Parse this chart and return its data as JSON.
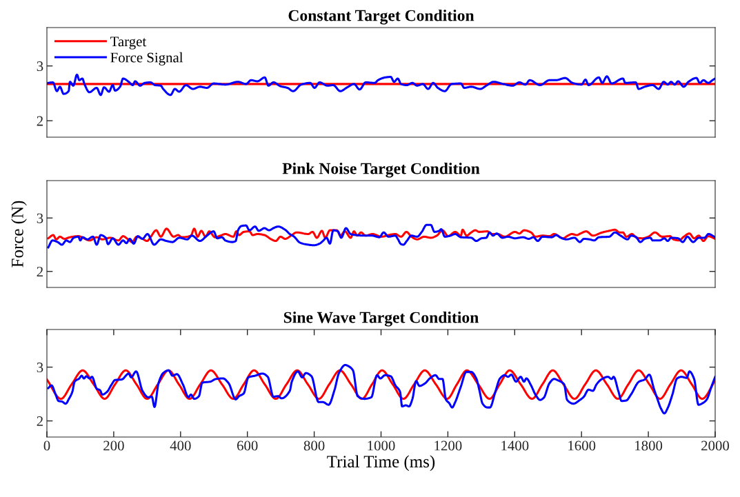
{
  "chart_data": [
    {
      "type": "line",
      "title": "Constant Target Condition",
      "xlim": [
        0,
        2000
      ],
      "ylim": [
        1.7,
        3.7
      ],
      "yticks": [
        2,
        3
      ],
      "tick_labels": "y",
      "legend": "top left",
      "grid": false,
      "series": [
        {
          "name": "Target",
          "color": "#ff0000",
          "x": [
            0,
            2000
          ],
          "values": [
            2.67,
            2.67
          ]
        },
        {
          "name": "Force Signal",
          "color": "#0000ff",
          "x": [
            4,
            18,
            30,
            39,
            50,
            65,
            69,
            79,
            90,
            97,
            106,
            113,
            127,
            149,
            161,
            171,
            186,
            197,
            204,
            219,
            228,
            245,
            257,
            264,
            279,
            293,
            310,
            324,
            341,
            348,
            370,
            383,
            396,
            416,
            437,
            458,
            479,
            499,
            534,
            572,
            596,
            611,
            630,
            652,
            663,
            678,
            699,
            720,
            737,
            761,
            788,
            801,
            816,
            840,
            857,
            878,
            899,
            919,
            936,
            954,
            981,
            991,
            1012,
            1029,
            1039,
            1050,
            1060,
            1077,
            1094,
            1108,
            1125,
            1141,
            1156,
            1170,
            1191,
            1211,
            1239,
            1249,
            1270,
            1297,
            1315,
            1337,
            1366,
            1394,
            1414,
            1432,
            1445,
            1476,
            1504,
            1524,
            1551,
            1573,
            1600,
            1612,
            1621,
            1652,
            1662,
            1676,
            1690,
            1724,
            1731,
            1762,
            1771,
            1789,
            1813,
            1831,
            1846,
            1858,
            1868,
            1879,
            1889,
            1906,
            1920,
            1944,
            1954,
            1965,
            1979,
            1992,
            2000
          ],
          "values": [
            2.69,
            2.7,
            2.54,
            2.62,
            2.49,
            2.54,
            2.71,
            2.64,
            2.84,
            2.74,
            2.77,
            2.66,
            2.52,
            2.6,
            2.47,
            2.61,
            2.53,
            2.65,
            2.55,
            2.62,
            2.77,
            2.71,
            2.65,
            2.72,
            2.64,
            2.69,
            2.7,
            2.65,
            2.64,
            2.58,
            2.47,
            2.58,
            2.53,
            2.65,
            2.58,
            2.62,
            2.6,
            2.68,
            2.66,
            2.71,
            2.67,
            2.74,
            2.72,
            2.79,
            2.64,
            2.7,
            2.63,
            2.6,
            2.54,
            2.66,
            2.69,
            2.6,
            2.7,
            2.64,
            2.65,
            2.54,
            2.61,
            2.67,
            2.57,
            2.7,
            2.69,
            2.74,
            2.79,
            2.8,
            2.71,
            2.77,
            2.67,
            2.65,
            2.69,
            2.64,
            2.67,
            2.58,
            2.69,
            2.6,
            2.54,
            2.67,
            2.68,
            2.6,
            2.62,
            2.58,
            2.64,
            2.71,
            2.67,
            2.64,
            2.7,
            2.66,
            2.74,
            2.65,
            2.74,
            2.74,
            2.78,
            2.69,
            2.66,
            2.75,
            2.65,
            2.79,
            2.69,
            2.81,
            2.68,
            2.77,
            2.69,
            2.7,
            2.58,
            2.62,
            2.65,
            2.58,
            2.71,
            2.66,
            2.71,
            2.66,
            2.72,
            2.62,
            2.71,
            2.78,
            2.69,
            2.74,
            2.69,
            2.74,
            2.77
          ]
        }
      ]
    },
    {
      "type": "line",
      "title": "Pink Noise Target Condition",
      "ylabel": "Force (N)",
      "xlim": [
        0,
        2000
      ],
      "ylim": [
        1.7,
        3.7
      ],
      "yticks": [
        2,
        3
      ],
      "tick_labels": "y",
      "grid": false,
      "series": [
        {
          "color": "#ff0000",
          "x": [
            4,
            19,
            28,
            39,
            52,
            69,
            94,
            128,
            149,
            166,
            190,
            214,
            228,
            241,
            255,
            269,
            286,
            300,
            310,
            327,
            341,
            358,
            379,
            393,
            403,
            431,
            441,
            451,
            462,
            475,
            486,
            503,
            520,
            534,
            558,
            567,
            575,
            589,
            606,
            616,
            630,
            651,
            672,
            685,
            699,
            713,
            733,
            747,
            782,
            795,
            808,
            823,
            833,
            847,
            868,
            878,
            892,
            909,
            919,
            929,
            940,
            954,
            974,
            1002,
            1022,
            1043,
            1060,
            1076,
            1091,
            1108,
            1129,
            1149,
            1167,
            1184,
            1201,
            1222,
            1239,
            1244,
            1256,
            1270,
            1282,
            1294,
            1318,
            1332,
            1349,
            1370,
            1401,
            1414,
            1428,
            1449,
            1462,
            1483,
            1504,
            1518,
            1545,
            1559,
            1571,
            1586,
            1597,
            1614,
            1634,
            1662,
            1683,
            1700,
            1714,
            1724,
            1734,
            1751,
            1765,
            1782,
            1800,
            1820,
            1841,
            1865,
            1875,
            1892,
            1906,
            1923,
            1937,
            1951,
            1965,
            1979,
            2000
          ],
          "values": [
            2.62,
            2.68,
            2.6,
            2.65,
            2.61,
            2.64,
            2.66,
            2.58,
            2.64,
            2.6,
            2.63,
            2.58,
            2.66,
            2.61,
            2.55,
            2.65,
            2.61,
            2.57,
            2.64,
            2.77,
            2.65,
            2.8,
            2.65,
            2.68,
            2.64,
            2.67,
            2.8,
            2.65,
            2.76,
            2.65,
            2.75,
            2.64,
            2.67,
            2.7,
            2.65,
            2.75,
            2.68,
            2.74,
            2.75,
            2.68,
            2.7,
            2.68,
            2.6,
            2.57,
            2.65,
            2.61,
            2.68,
            2.73,
            2.7,
            2.74,
            2.63,
            2.76,
            2.63,
            2.77,
            2.77,
            2.67,
            2.75,
            2.63,
            2.75,
            2.67,
            2.73,
            2.67,
            2.7,
            2.65,
            2.68,
            2.7,
            2.65,
            2.74,
            2.65,
            2.6,
            2.65,
            2.63,
            2.67,
            2.77,
            2.66,
            2.74,
            2.67,
            2.78,
            2.67,
            2.73,
            2.77,
            2.74,
            2.75,
            2.7,
            2.7,
            2.65,
            2.74,
            2.71,
            2.77,
            2.73,
            2.65,
            2.67,
            2.66,
            2.7,
            2.62,
            2.67,
            2.7,
            2.68,
            2.71,
            2.75,
            2.67,
            2.73,
            2.76,
            2.78,
            2.73,
            2.73,
            2.65,
            2.7,
            2.63,
            2.62,
            2.65,
            2.73,
            2.65,
            2.66,
            2.6,
            2.58,
            2.65,
            2.71,
            2.62,
            2.67,
            2.57,
            2.66,
            2.61
          ]
        },
        {
          "color": "#0000ff",
          "x": [
            4,
            17,
            32,
            45,
            58,
            69,
            80,
            94,
            100,
            107,
            121,
            138,
            149,
            161,
            176,
            183,
            197,
            214,
            228,
            238,
            248,
            260,
            272,
            286,
            301,
            321,
            341,
            358,
            376,
            396,
            420,
            434,
            458,
            479,
            499,
            510,
            524,
            534,
            555,
            565,
            572,
            582,
            596,
            606,
            623,
            634,
            651,
            665,
            678,
            692,
            713,
            727,
            740,
            757,
            782,
            799,
            816,
            826,
            837,
            847,
            857,
            871,
            881,
            895,
            909,
            926,
            947,
            974,
            995,
            1008,
            1022,
            1043,
            1050,
            1060,
            1067,
            1077,
            1091,
            1108,
            1122,
            1136,
            1149,
            1160,
            1174,
            1180,
            1191,
            1208,
            1222,
            1239,
            1270,
            1285,
            1301,
            1315,
            1325,
            1335,
            1346,
            1363,
            1380,
            1401,
            1425,
            1442,
            1456,
            1469,
            1483,
            1511,
            1524,
            1538,
            1555,
            1579,
            1595,
            1607,
            1624,
            1638,
            1652,
            1683,
            1700,
            1717,
            1738,
            1748,
            1762,
            1776,
            1789,
            1806,
            1813,
            1834,
            1848,
            1858,
            1868,
            1889,
            1903,
            1917,
            1934,
            1951,
            1968,
            1980,
            2000
          ],
          "values": [
            2.45,
            2.58,
            2.55,
            2.5,
            2.58,
            2.55,
            2.63,
            2.65,
            2.58,
            2.64,
            2.6,
            2.65,
            2.5,
            2.68,
            2.63,
            2.51,
            2.62,
            2.5,
            2.58,
            2.53,
            2.61,
            2.52,
            2.66,
            2.61,
            2.7,
            2.5,
            2.6,
            2.57,
            2.55,
            2.63,
            2.6,
            2.67,
            2.57,
            2.67,
            2.75,
            2.62,
            2.64,
            2.58,
            2.55,
            2.57,
            2.77,
            2.85,
            2.86,
            2.77,
            2.84,
            2.76,
            2.81,
            2.77,
            2.81,
            2.84,
            2.78,
            2.7,
            2.65,
            2.54,
            2.5,
            2.49,
            2.52,
            2.57,
            2.63,
            2.52,
            2.77,
            2.75,
            2.63,
            2.81,
            2.7,
            2.68,
            2.67,
            2.67,
            2.64,
            2.73,
            2.65,
            2.67,
            2.61,
            2.51,
            2.5,
            2.57,
            2.67,
            2.65,
            2.74,
            2.87,
            2.87,
            2.74,
            2.76,
            2.79,
            2.65,
            2.67,
            2.7,
            2.64,
            2.63,
            2.57,
            2.62,
            2.63,
            2.73,
            2.67,
            2.71,
            2.63,
            2.65,
            2.62,
            2.64,
            2.61,
            2.64,
            2.57,
            2.65,
            2.64,
            2.68,
            2.63,
            2.6,
            2.63,
            2.55,
            2.61,
            2.6,
            2.58,
            2.64,
            2.65,
            2.73,
            2.67,
            2.6,
            2.67,
            2.65,
            2.55,
            2.61,
            2.63,
            2.58,
            2.58,
            2.62,
            2.57,
            2.63,
            2.62,
            2.55,
            2.65,
            2.55,
            2.63,
            2.63,
            2.7,
            2.64
          ]
        }
      ]
    },
    {
      "type": "line",
      "title": "Sine Wave Target Condition",
      "xlabel": "Trial Time (ms)",
      "xlim": [
        0,
        2000
      ],
      "xticks": [
        0,
        200,
        400,
        600,
        800,
        1000,
        1200,
        1400,
        1600,
        1800,
        2000
      ],
      "ylim": [
        1.7,
        3.7
      ],
      "yticks": [
        2,
        3
      ],
      "grid": false,
      "series": [
        {
          "color": "#ff0000",
          "x": [
            0,
            42,
            74,
            107,
            140,
            173,
            204,
            236,
            268,
            300,
            332,
            364,
            395,
            427,
            459,
            491,
            524,
            558,
            589,
            620,
            652,
            685,
            717,
            749,
            781,
            814,
            845,
            877,
            910,
            943,
            973,
            1003,
            1035,
            1067,
            1099,
            1131,
            1164,
            1198,
            1227,
            1257,
            1291,
            1325,
            1355,
            1385,
            1418,
            1452,
            1483,
            1514,
            1546,
            1579,
            1611,
            1643,
            1676,
            1709,
            1740,
            1771,
            1803,
            1835,
            1866,
            1898,
            1930,
            1961,
            2000
          ],
          "values": [
            2.77,
            2.41,
            2.68,
            2.94,
            2.68,
            2.41,
            2.68,
            2.94,
            2.68,
            2.41,
            2.68,
            2.94,
            2.68,
            2.41,
            2.68,
            2.94,
            2.68,
            2.41,
            2.68,
            2.94,
            2.68,
            2.41,
            2.68,
            2.94,
            2.68,
            2.41,
            2.68,
            2.94,
            2.68,
            2.41,
            2.68,
            2.94,
            2.68,
            2.41,
            2.68,
            2.94,
            2.68,
            2.41,
            2.68,
            2.94,
            2.68,
            2.41,
            2.68,
            2.94,
            2.68,
            2.41,
            2.68,
            2.94,
            2.68,
            2.41,
            2.68,
            2.94,
            2.68,
            2.41,
            2.68,
            2.94,
            2.68,
            2.41,
            2.68,
            2.94,
            2.68,
            2.41,
            2.75
          ]
        },
        {
          "color": "#0000ff",
          "x": [
            4,
            14,
            25,
            35,
            45,
            56,
            66,
            76,
            83,
            97,
            104,
            111,
            118,
            128,
            135,
            149,
            159,
            166,
            180,
            193,
            204,
            224,
            245,
            252,
            267,
            286,
            303,
            314,
            322,
            334,
            348,
            364,
            376,
            389,
            407,
            424,
            431,
            441,
            455,
            465,
            489,
            506,
            527,
            544,
            565,
            575,
            589,
            603,
            623,
            645,
            661,
            678,
            692,
            702,
            727,
            733,
            751,
            764,
            775,
            792,
            813,
            826,
            843,
            861,
            874,
            893,
            902,
            916,
            930,
            950,
            971,
            988,
            998,
            1012,
            1029,
            1043,
            1057,
            1063,
            1074,
            1084,
            1094,
            1105,
            1115,
            1132,
            1146,
            1163,
            1174,
            1184,
            1194,
            1204,
            1213,
            1222,
            1239,
            1255,
            1270,
            1285,
            1294,
            1304,
            1318,
            1326,
            1342,
            1356,
            1370,
            1380,
            1390,
            1404,
            1418,
            1428,
            1435,
            1449,
            1462,
            1476,
            1487,
            1504,
            1518,
            1531,
            1548,
            1557,
            1576,
            1593,
            1607,
            1621,
            1634,
            1645,
            1659,
            1679,
            1690,
            1696,
            1710,
            1720,
            1734,
            1748,
            1772,
            1789,
            1803,
            1817,
            1827,
            1837,
            1848,
            1858,
            1872,
            1886,
            1899,
            1915,
            1923,
            1937,
            1950,
            1965,
            1975,
            1989,
            2000
          ],
          "values": [
            2.61,
            2.66,
            2.51,
            2.37,
            2.36,
            2.32,
            2.41,
            2.54,
            2.73,
            2.79,
            2.84,
            2.79,
            2.83,
            2.79,
            2.82,
            2.6,
            2.57,
            2.49,
            2.54,
            2.67,
            2.76,
            2.77,
            2.88,
            2.81,
            2.92,
            2.56,
            2.44,
            2.45,
            2.26,
            2.7,
            2.89,
            2.94,
            2.84,
            2.87,
            2.68,
            2.44,
            2.49,
            2.41,
            2.46,
            2.71,
            2.73,
            2.78,
            2.79,
            2.7,
            2.4,
            2.46,
            2.51,
            2.81,
            2.84,
            2.88,
            2.82,
            2.45,
            2.46,
            2.42,
            2.56,
            2.73,
            2.92,
            2.81,
            2.89,
            2.83,
            2.35,
            2.35,
            2.3,
            2.58,
            2.89,
            3.04,
            3.02,
            2.94,
            2.46,
            2.41,
            2.44,
            2.85,
            2.79,
            2.85,
            2.83,
            2.66,
            2.54,
            2.27,
            2.29,
            2.27,
            2.41,
            2.74,
            2.65,
            2.7,
            2.79,
            2.85,
            2.78,
            2.78,
            2.4,
            2.33,
            2.25,
            2.35,
            2.64,
            2.91,
            2.91,
            2.79,
            2.58,
            2.32,
            2.25,
            2.25,
            2.54,
            2.79,
            2.85,
            2.82,
            2.86,
            2.73,
            2.82,
            2.73,
            2.79,
            2.66,
            2.49,
            2.39,
            2.43,
            2.7,
            2.78,
            2.75,
            2.68,
            2.39,
            2.32,
            2.38,
            2.45,
            2.58,
            2.56,
            2.68,
            2.77,
            2.82,
            2.78,
            2.82,
            2.56,
            2.37,
            2.38,
            2.49,
            2.73,
            2.77,
            2.86,
            2.59,
            2.41,
            2.24,
            2.14,
            2.24,
            2.49,
            2.79,
            2.82,
            2.8,
            2.92,
            2.78,
            2.3,
            2.34,
            2.4,
            2.64,
            2.82
          ]
        }
      ]
    }
  ]
}
